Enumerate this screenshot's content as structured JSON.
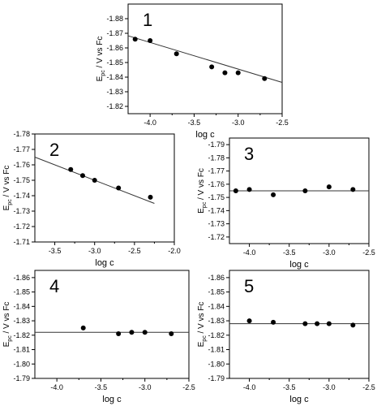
{
  "chart_data": [
    {
      "type": "scatter",
      "panel_label": "1",
      "xlabel": "log c",
      "ylabel_main": "E",
      "ylabel_sub": "pc",
      "ylabel_rest": " / V vs Fc",
      "xlim": [
        -4.25,
        -2.5
      ],
      "ylim": [
        -1.815,
        -1.89
      ],
      "xticks": [
        -4.0,
        -3.5,
        -3.0,
        -2.5
      ],
      "xtick_labels": [
        "-4.0",
        "-3.5",
        "-3.0",
        "-2.5"
      ],
      "yticks": [
        -1.82,
        -1.83,
        -1.84,
        -1.85,
        -1.86,
        -1.87,
        -1.88
      ],
      "ytick_labels": [
        "-1.82",
        "-1.83",
        "-1.84",
        "-1.85",
        "-1.86",
        "-1.87",
        "-1.88"
      ],
      "x": [
        -4.17,
        -4.0,
        -3.7,
        -3.3,
        -3.15,
        -3.0,
        -2.7
      ],
      "y": [
        -1.866,
        -1.865,
        -1.856,
        -1.847,
        -1.843,
        -1.843,
        -1.839
      ],
      "fit": {
        "x": [
          -4.25,
          -2.5
        ],
        "y": [
          -1.8683,
          -1.8364
        ]
      }
    },
    {
      "type": "scatter",
      "panel_label": "2",
      "xlabel": "log c",
      "ylabel_main": "E",
      "ylabel_sub": "pc",
      "ylabel_rest": " / V vs Fc",
      "xlim": [
        -3.75,
        -2.0
      ],
      "ylim": [
        -1.71,
        -1.78
      ],
      "xticks": [
        -3.5,
        -3.0,
        -2.5,
        -2.0
      ],
      "xtick_labels": [
        "-3.5",
        "-3.0",
        "-2.5",
        "-2.0"
      ],
      "yticks": [
        -1.71,
        -1.72,
        -1.73,
        -1.74,
        -1.75,
        -1.76,
        -1.77,
        -1.78
      ],
      "ytick_labels": [
        "-1.71",
        "-1.72",
        "-1.73",
        "-1.74",
        "-1.75",
        "-1.76",
        "-1.77",
        "-1.78"
      ],
      "x": [
        -3.3,
        -3.15,
        -3.0,
        -2.7,
        -2.3
      ],
      "y": [
        -1.757,
        -1.753,
        -1.75,
        -1.745,
        -1.739
      ],
      "fit": {
        "x": [
          -3.75,
          -2.25
        ],
        "y": [
          -1.765,
          -1.735
        ]
      }
    },
    {
      "type": "scatter",
      "panel_label": "3",
      "xlabel": "log c",
      "ylabel_main": "E",
      "ylabel_sub": "pc",
      "ylabel_rest": " / V vs Fc",
      "xlim": [
        -4.25,
        -2.5
      ],
      "ylim": [
        -1.715,
        -1.795
      ],
      "xticks": [
        -4.0,
        -3.5,
        -3.0,
        -2.5
      ],
      "xtick_labels": [
        "-4.0",
        "-3.5",
        "-3.0",
        "-2.5"
      ],
      "yticks": [
        -1.72,
        -1.73,
        -1.74,
        -1.75,
        -1.76,
        -1.77,
        -1.78,
        -1.79
      ],
      "ytick_labels": [
        "-1.72",
        "-1.73",
        "-1.74",
        "-1.75",
        "-1.76",
        "-1.77",
        "-1.78",
        "-1.79"
      ],
      "x": [
        -4.17,
        -4.0,
        -3.7,
        -3.3,
        -3.0,
        -2.7
      ],
      "y": [
        -1.755,
        -1.756,
        -1.752,
        -1.755,
        -1.758,
        -1.756
      ],
      "fit": {
        "x": [
          -4.25,
          -2.5
        ],
        "y": [
          -1.755,
          -1.755
        ]
      }
    },
    {
      "type": "scatter",
      "panel_label": "4",
      "xlabel": "log c",
      "ylabel_main": "E",
      "ylabel_sub": "pc",
      "ylabel_rest": " / V vs Fc",
      "xlim": [
        -4.25,
        -2.5
      ],
      "ylim": [
        -1.79,
        -1.865
      ],
      "xticks": [
        -4.0,
        -3.5,
        -3.0,
        -2.5
      ],
      "xtick_labels": [
        "-4.0",
        "-3.5",
        "-3.0",
        "-2.5"
      ],
      "yticks": [
        -1.79,
        -1.8,
        -1.81,
        -1.82,
        -1.83,
        -1.84,
        -1.85,
        -1.86
      ],
      "ytick_labels": [
        "-1.79",
        "-1.80",
        "-1.81",
        "-1.82",
        "-1.83",
        "-1.84",
        "-1.85",
        "-1.86"
      ],
      "x": [
        -3.7,
        -3.3,
        -3.15,
        -3.0,
        -2.7
      ],
      "y": [
        -1.825,
        -1.821,
        -1.822,
        -1.822,
        -1.821
      ],
      "fit": {
        "x": [
          -4.25,
          -2.5
        ],
        "y": [
          -1.822,
          -1.822
        ]
      }
    },
    {
      "type": "scatter",
      "panel_label": "5",
      "xlabel": "log c",
      "ylabel_main": "E",
      "ylabel_sub": "pc",
      "ylabel_rest": " / V vs Fc",
      "xlim": [
        -4.25,
        -2.5
      ],
      "ylim": [
        -1.79,
        -1.865
      ],
      "xticks": [
        -4.0,
        -3.5,
        -3.0,
        -2.5
      ],
      "xtick_labels": [
        "-4.0",
        "-3.5",
        "-3.0",
        "-2.5"
      ],
      "yticks": [
        -1.79,
        -1.8,
        -1.81,
        -1.82,
        -1.83,
        -1.84,
        -1.85,
        -1.86
      ],
      "ytick_labels": [
        "-1.79",
        "-1.80",
        "-1.81",
        "-1.82",
        "-1.83",
        "-1.84",
        "-1.85",
        "-1.86"
      ],
      "x": [
        -4.0,
        -3.7,
        -3.3,
        -3.15,
        -3.0,
        -2.7
      ],
      "y": [
        -1.83,
        -1.829,
        -1.828,
        -1.828,
        -1.828,
        -1.827
      ],
      "fit": {
        "x": [
          -4.25,
          -2.5
        ],
        "y": [
          -1.828,
          -1.828
        ]
      }
    }
  ]
}
